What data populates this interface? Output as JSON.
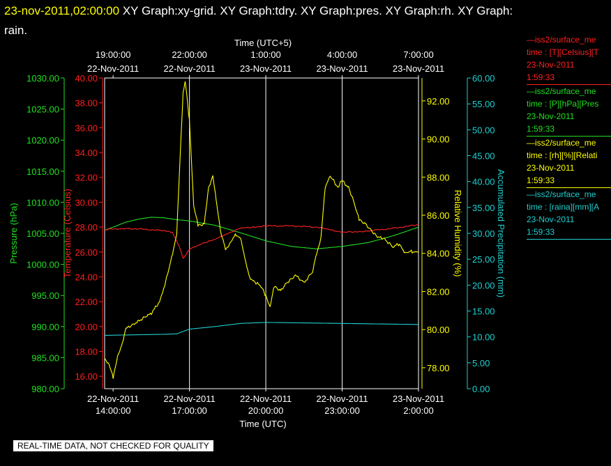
{
  "header": {
    "timestamp": "23-nov-2011,02:00:00",
    "title": "XY Graph:xy-grid.  XY Graph:tdry.  XY Graph:pres.  XY Graph:rh.  XY Graph:",
    "title_wrap": "rain."
  },
  "colors": {
    "background": "#000000",
    "frame": "#ffffff",
    "temperature": "#ff2020",
    "pressure": "#20e020",
    "humidity": "#ffff00",
    "precipitation": "#20d0d0"
  },
  "legend": [
    {
      "series": "temperature",
      "lines": [
        "—iss2/surface_me",
        "time : [T][Celsius][T",
        "23-Nov-2011",
        "1:59:33"
      ]
    },
    {
      "series": "pressure",
      "lines": [
        "—iss2/surface_me",
        "time : [P][hPa][Pres",
        "23-Nov-2011",
        "1:59:33"
      ]
    },
    {
      "series": "humidity",
      "lines": [
        "—iss2/surface_me",
        "time : [rh][%][Relati",
        "23-Nov-2011",
        "1:59:33"
      ]
    },
    {
      "series": "precipitation",
      "lines": [
        "—iss2/surface_me",
        "time : [raina][mm][A",
        "23-Nov-2011",
        "1:59:33"
      ]
    }
  ],
  "disclaimer": "REAL-TIME DATA, NOT CHECKED FOR QUALITY",
  "chart_data": {
    "type": "line",
    "grid": true,
    "x_bottom": {
      "label": "Time (UTC)",
      "range": [
        "22-Nov-2011 13:40",
        "23-Nov-2011 02:00"
      ],
      "ticks": [
        {
          "date": "22-Nov-2011",
          "time": "14:00:00"
        },
        {
          "date": "22-Nov-2011",
          "time": "17:00:00"
        },
        {
          "date": "22-Nov-2011",
          "time": "20:00:00"
        },
        {
          "date": "22-Nov-2011",
          "time": "23:00:00"
        },
        {
          "date": "23-Nov-2011",
          "time": "2:00:00"
        }
      ]
    },
    "x_top": {
      "label": "Time (UTC+5)",
      "ticks": [
        {
          "time": "19:00:00",
          "date": "22-Nov-2011"
        },
        {
          "time": "22:00:00",
          "date": "22-Nov-2011"
        },
        {
          "time": "1:00:00",
          "date": "23-Nov-2011"
        },
        {
          "time": "4:00:00",
          "date": "23-Nov-2011"
        },
        {
          "time": "7:00:00",
          "date": "23-Nov-2011"
        }
      ]
    },
    "axes": {
      "pressure": {
        "label": "Pressure (hPa)",
        "range": [
          980,
          1030
        ],
        "ticks": [
          "980.00",
          "985.00",
          "990.00",
          "995.00",
          "1000.00",
          "1005.00",
          "1010.00",
          "1015.00",
          "1020.00",
          "1025.00",
          "1030.00"
        ]
      },
      "temperature": {
        "label": "Temperature (Celsius)",
        "range": [
          15,
          40
        ],
        "ticks": [
          "16.00",
          "18.00",
          "20.00",
          "22.00",
          "24.00",
          "26.00",
          "28.00",
          "30.00",
          "32.00",
          "34.00",
          "36.00",
          "38.00",
          "40.00"
        ]
      },
      "humidity": {
        "label": "Relative Humidity (%)",
        "range": [
          76.9,
          93.2
        ],
        "ticks": [
          "78.00",
          "80.00",
          "82.00",
          "84.00",
          "86.00",
          "88.00",
          "90.00",
          "92.00"
        ]
      },
      "precipitation": {
        "label": "Accumulated Precipitation (mm)",
        "range": [
          0,
          60
        ],
        "ticks": [
          "0.00",
          "5.00",
          "10.00",
          "15.00",
          "20.00",
          "25.00",
          "30.00",
          "35.00",
          "40.00",
          "45.00",
          "50.00",
          "55.00",
          "60.00"
        ]
      }
    },
    "series": [
      {
        "name": "Temperature",
        "axis": "temperature",
        "unit": "Celsius",
        "x": [
          "22-Nov-2011 13:40",
          "22-Nov-2011 14:30",
          "22-Nov-2011 15:30",
          "22-Nov-2011 16:00",
          "22-Nov-2011 16:20",
          "22-Nov-2011 16:35",
          "22-Nov-2011 16:45",
          "22-Nov-2011 17:00",
          "22-Nov-2011 17:30",
          "22-Nov-2011 18:00",
          "22-Nov-2011 18:30",
          "22-Nov-2011 19:00",
          "22-Nov-2011 19:30",
          "22-Nov-2011 20:00",
          "22-Nov-2011 21:00",
          "22-Nov-2011 22:00",
          "22-Nov-2011 22:30",
          "22-Nov-2011 23:00",
          "22-Nov-2011 23:30",
          "23-Nov-2011 00:00",
          "23-Nov-2011 01:00",
          "23-Nov-2011 02:00"
        ],
        "values": [
          27.8,
          27.9,
          27.8,
          27.7,
          27.6,
          26.5,
          25.5,
          26.2,
          26.7,
          27.0,
          27.5,
          27.9,
          28.0,
          28.1,
          28.1,
          28.0,
          27.8,
          27.6,
          27.6,
          27.7,
          27.9,
          28.2
        ]
      },
      {
        "name": "Pressure",
        "axis": "pressure",
        "unit": "hPa",
        "x": [
          "22-Nov-2011 13:40",
          "22-Nov-2011 14:00",
          "22-Nov-2011 14:30",
          "22-Nov-2011 15:00",
          "22-Nov-2011 15:30",
          "22-Nov-2011 16:00",
          "22-Nov-2011 16:30",
          "22-Nov-2011 17:00",
          "22-Nov-2011 18:00",
          "22-Nov-2011 19:00",
          "22-Nov-2011 20:00",
          "22-Nov-2011 21:00",
          "22-Nov-2011 22:00",
          "22-Nov-2011 23:00",
          "23-Nov-2011 00:00",
          "23-Nov-2011 01:00",
          "23-Nov-2011 02:00"
        ],
        "values": [
          1005.5,
          1006.0,
          1006.8,
          1007.3,
          1007.6,
          1007.5,
          1007.2,
          1007.0,
          1006.3,
          1005.1,
          1003.8,
          1002.9,
          1002.5,
          1002.9,
          1003.5,
          1004.6,
          1006.0
        ]
      },
      {
        "name": "Relative Humidity",
        "axis": "humidity",
        "unit": "%",
        "x": [
          "22-Nov-2011 13:40",
          "22-Nov-2011 13:50",
          "22-Nov-2011 14:00",
          "22-Nov-2011 14:10",
          "22-Nov-2011 14:20",
          "22-Nov-2011 14:30",
          "22-Nov-2011 15:00",
          "22-Nov-2011 15:30",
          "22-Nov-2011 15:50",
          "22-Nov-2011 16:10",
          "22-Nov-2011 16:20",
          "22-Nov-2011 16:30",
          "22-Nov-2011 16:40",
          "22-Nov-2011 16:45",
          "22-Nov-2011 16:50",
          "22-Nov-2011 17:00",
          "22-Nov-2011 17:10",
          "22-Nov-2011 17:20",
          "22-Nov-2011 17:35",
          "22-Nov-2011 17:45",
          "22-Nov-2011 17:55",
          "22-Nov-2011 18:05",
          "22-Nov-2011 18:15",
          "22-Nov-2011 18:25",
          "22-Nov-2011 18:35",
          "22-Nov-2011 18:50",
          "22-Nov-2011 19:00",
          "22-Nov-2011 19:20",
          "22-Nov-2011 19:35",
          "22-Nov-2011 19:50",
          "22-Nov-2011 20:00",
          "22-Nov-2011 20:10",
          "22-Nov-2011 20:20",
          "22-Nov-2011 20:35",
          "22-Nov-2011 20:50",
          "22-Nov-2011 21:10",
          "22-Nov-2011 21:30",
          "22-Nov-2011 21:50",
          "22-Nov-2011 22:00",
          "22-Nov-2011 22:10",
          "22-Nov-2011 22:20",
          "22-Nov-2011 22:30",
          "22-Nov-2011 22:40",
          "22-Nov-2011 22:50",
          "22-Nov-2011 23:00",
          "22-Nov-2011 23:15",
          "22-Nov-2011 23:30",
          "22-Nov-2011 23:40",
          "22-Nov-2011 23:55",
          "23-Nov-2011 00:10",
          "23-Nov-2011 00:25",
          "23-Nov-2011 00:40",
          "23-Nov-2011 01:00",
          "23-Nov-2011 01:15",
          "23-Nov-2011 01:30",
          "23-Nov-2011 01:45",
          "23-Nov-2011 02:00"
        ],
        "values": [
          78.5,
          78.2,
          77.5,
          78.5,
          79.2,
          80.0,
          80.5,
          80.8,
          81.5,
          83.0,
          84.0,
          85.0,
          90.0,
          92.5,
          93.0,
          91.0,
          86.5,
          85.5,
          85.5,
          87.5,
          88.0,
          86.5,
          85.0,
          84.2,
          84.5,
          85.0,
          84.8,
          82.8,
          82.5,
          82.2,
          81.8,
          81.2,
          82.3,
          82.0,
          82.5,
          82.8,
          82.5,
          83.0,
          84.0,
          84.8,
          87.5,
          88.0,
          87.8,
          87.5,
          87.8,
          87.5,
          86.5,
          85.8,
          85.5,
          85.2,
          84.8,
          84.8,
          84.3,
          84.5,
          84.0,
          84.1,
          84.1
        ]
      },
      {
        "name": "Accumulated Precipitation",
        "axis": "precipitation",
        "unit": "mm",
        "x": [
          "22-Nov-2011 13:40",
          "22-Nov-2011 16:00",
          "22-Nov-2011 16:30",
          "22-Nov-2011 17:00",
          "22-Nov-2011 18:00",
          "22-Nov-2011 19:00",
          "22-Nov-2011 20:00",
          "22-Nov-2011 23:00",
          "23-Nov-2011 02:00"
        ],
        "values": [
          10.3,
          10.5,
          10.6,
          11.5,
          12.0,
          12.6,
          12.8,
          12.6,
          12.4
        ]
      }
    ]
  }
}
